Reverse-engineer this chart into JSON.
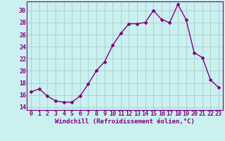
{
  "x": [
    0,
    1,
    2,
    3,
    4,
    5,
    6,
    7,
    8,
    9,
    10,
    11,
    12,
    13,
    14,
    15,
    16,
    17,
    18,
    19,
    20,
    21,
    22,
    23
  ],
  "y": [
    16.5,
    17.0,
    15.8,
    15.0,
    14.8,
    14.8,
    15.8,
    17.8,
    20.0,
    21.5,
    24.2,
    26.2,
    27.8,
    27.8,
    28.0,
    30.0,
    28.5,
    28.0,
    31.0,
    28.5,
    23.0,
    22.2,
    18.5,
    17.2
  ],
  "line_color": "#800080",
  "marker": "D",
  "marker_size": 2.0,
  "bg_color": "#caf0f0",
  "grid_color": "#aacccc",
  "xlabel": "Windchill (Refroidissement éolien,°C)",
  "ylabel": "",
  "xlim": [
    -0.5,
    23.5
  ],
  "ylim": [
    13.5,
    31.5
  ],
  "yticks": [
    14,
    16,
    18,
    20,
    22,
    24,
    26,
    28,
    30
  ],
  "xticks": [
    0,
    1,
    2,
    3,
    4,
    5,
    6,
    7,
    8,
    9,
    10,
    11,
    12,
    13,
    14,
    15,
    16,
    17,
    18,
    19,
    20,
    21,
    22,
    23
  ],
  "xlabel_fontsize": 6.5,
  "tick_fontsize": 6.0,
  "line_width": 1.0
}
